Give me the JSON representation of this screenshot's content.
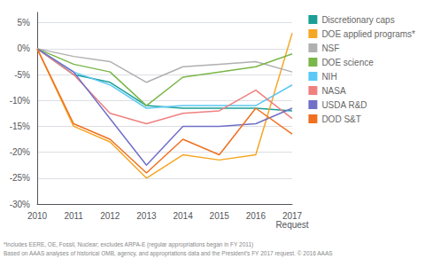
{
  "chart_data": {
    "type": "line",
    "categories": [
      "2010",
      "2011",
      "2012",
      "2013",
      "2014",
      "2015",
      "2016",
      "2017"
    ],
    "series": [
      {
        "name": "Discretionary caps",
        "color": "#1a9e96",
        "values": [
          0,
          -5.0,
          -6.5,
          -11.0,
          -11.5,
          -11.5,
          -11.5,
          -12.0
        ]
      },
      {
        "name": "DOE applied programs*",
        "color": "#f5a623",
        "values": [
          0,
          -15.0,
          -18.0,
          -25.0,
          -20.5,
          -21.5,
          -20.5,
          3.0
        ]
      },
      {
        "name": "NSF",
        "color": "#b0b0b0",
        "values": [
          0,
          -1.5,
          -2.5,
          -6.5,
          -3.5,
          -3.0,
          -2.5,
          -4.5
        ]
      },
      {
        "name": "DOE science",
        "color": "#7ab648",
        "values": [
          0,
          -3.0,
          -4.5,
          -11.0,
          -5.5,
          -4.5,
          -3.5,
          -1.0
        ]
      },
      {
        "name": "NIH",
        "color": "#5bc8f5",
        "values": [
          0,
          -4.5,
          -7.0,
          -11.5,
          -11.0,
          -11.0,
          -11.0,
          -7.0
        ]
      },
      {
        "name": "NASA",
        "color": "#f08080",
        "values": [
          0,
          -5.0,
          -12.5,
          -14.5,
          -12.5,
          -12.0,
          -8.0,
          -13.5
        ]
      },
      {
        "name": "USDA R&D",
        "color": "#7070c8",
        "values": [
          0,
          -4.5,
          -13.5,
          -22.5,
          -15.0,
          -15.0,
          -14.5,
          -11.5
        ]
      },
      {
        "name": "DOD S&T",
        "color": "#f07020",
        "values": [
          0,
          -14.5,
          -17.5,
          -24.0,
          -17.5,
          -20.5,
          -11.5,
          -16.5
        ]
      }
    ],
    "ylim": [
      -30,
      7
    ],
    "yticks": [
      {
        "value": 5,
        "label": "5%"
      },
      {
        "value": 0,
        "label": "0%"
      },
      {
        "value": -5,
        "label": "-5%"
      },
      {
        "value": -10,
        "label": "-10%"
      },
      {
        "value": -15,
        "label": "-15%"
      },
      {
        "value": -20,
        "label": "-20%"
      },
      {
        "value": -25,
        "label": "-25%"
      },
      {
        "value": -30,
        "label": "-30%"
      }
    ],
    "annotations": [
      {
        "text": "Request",
        "x": "2017"
      }
    ],
    "footnotes": [
      "*Includes EERE, OE, Fossil, Nuclear; excludes ARPA-E (regular appropriations began in FY 2011)",
      "Based on AAAS analyses of historical OMB, agency, and appropriations data and the President’s FY 2017 request. © 2016 AAAS"
    ],
    "grid": true,
    "legend": "right"
  }
}
